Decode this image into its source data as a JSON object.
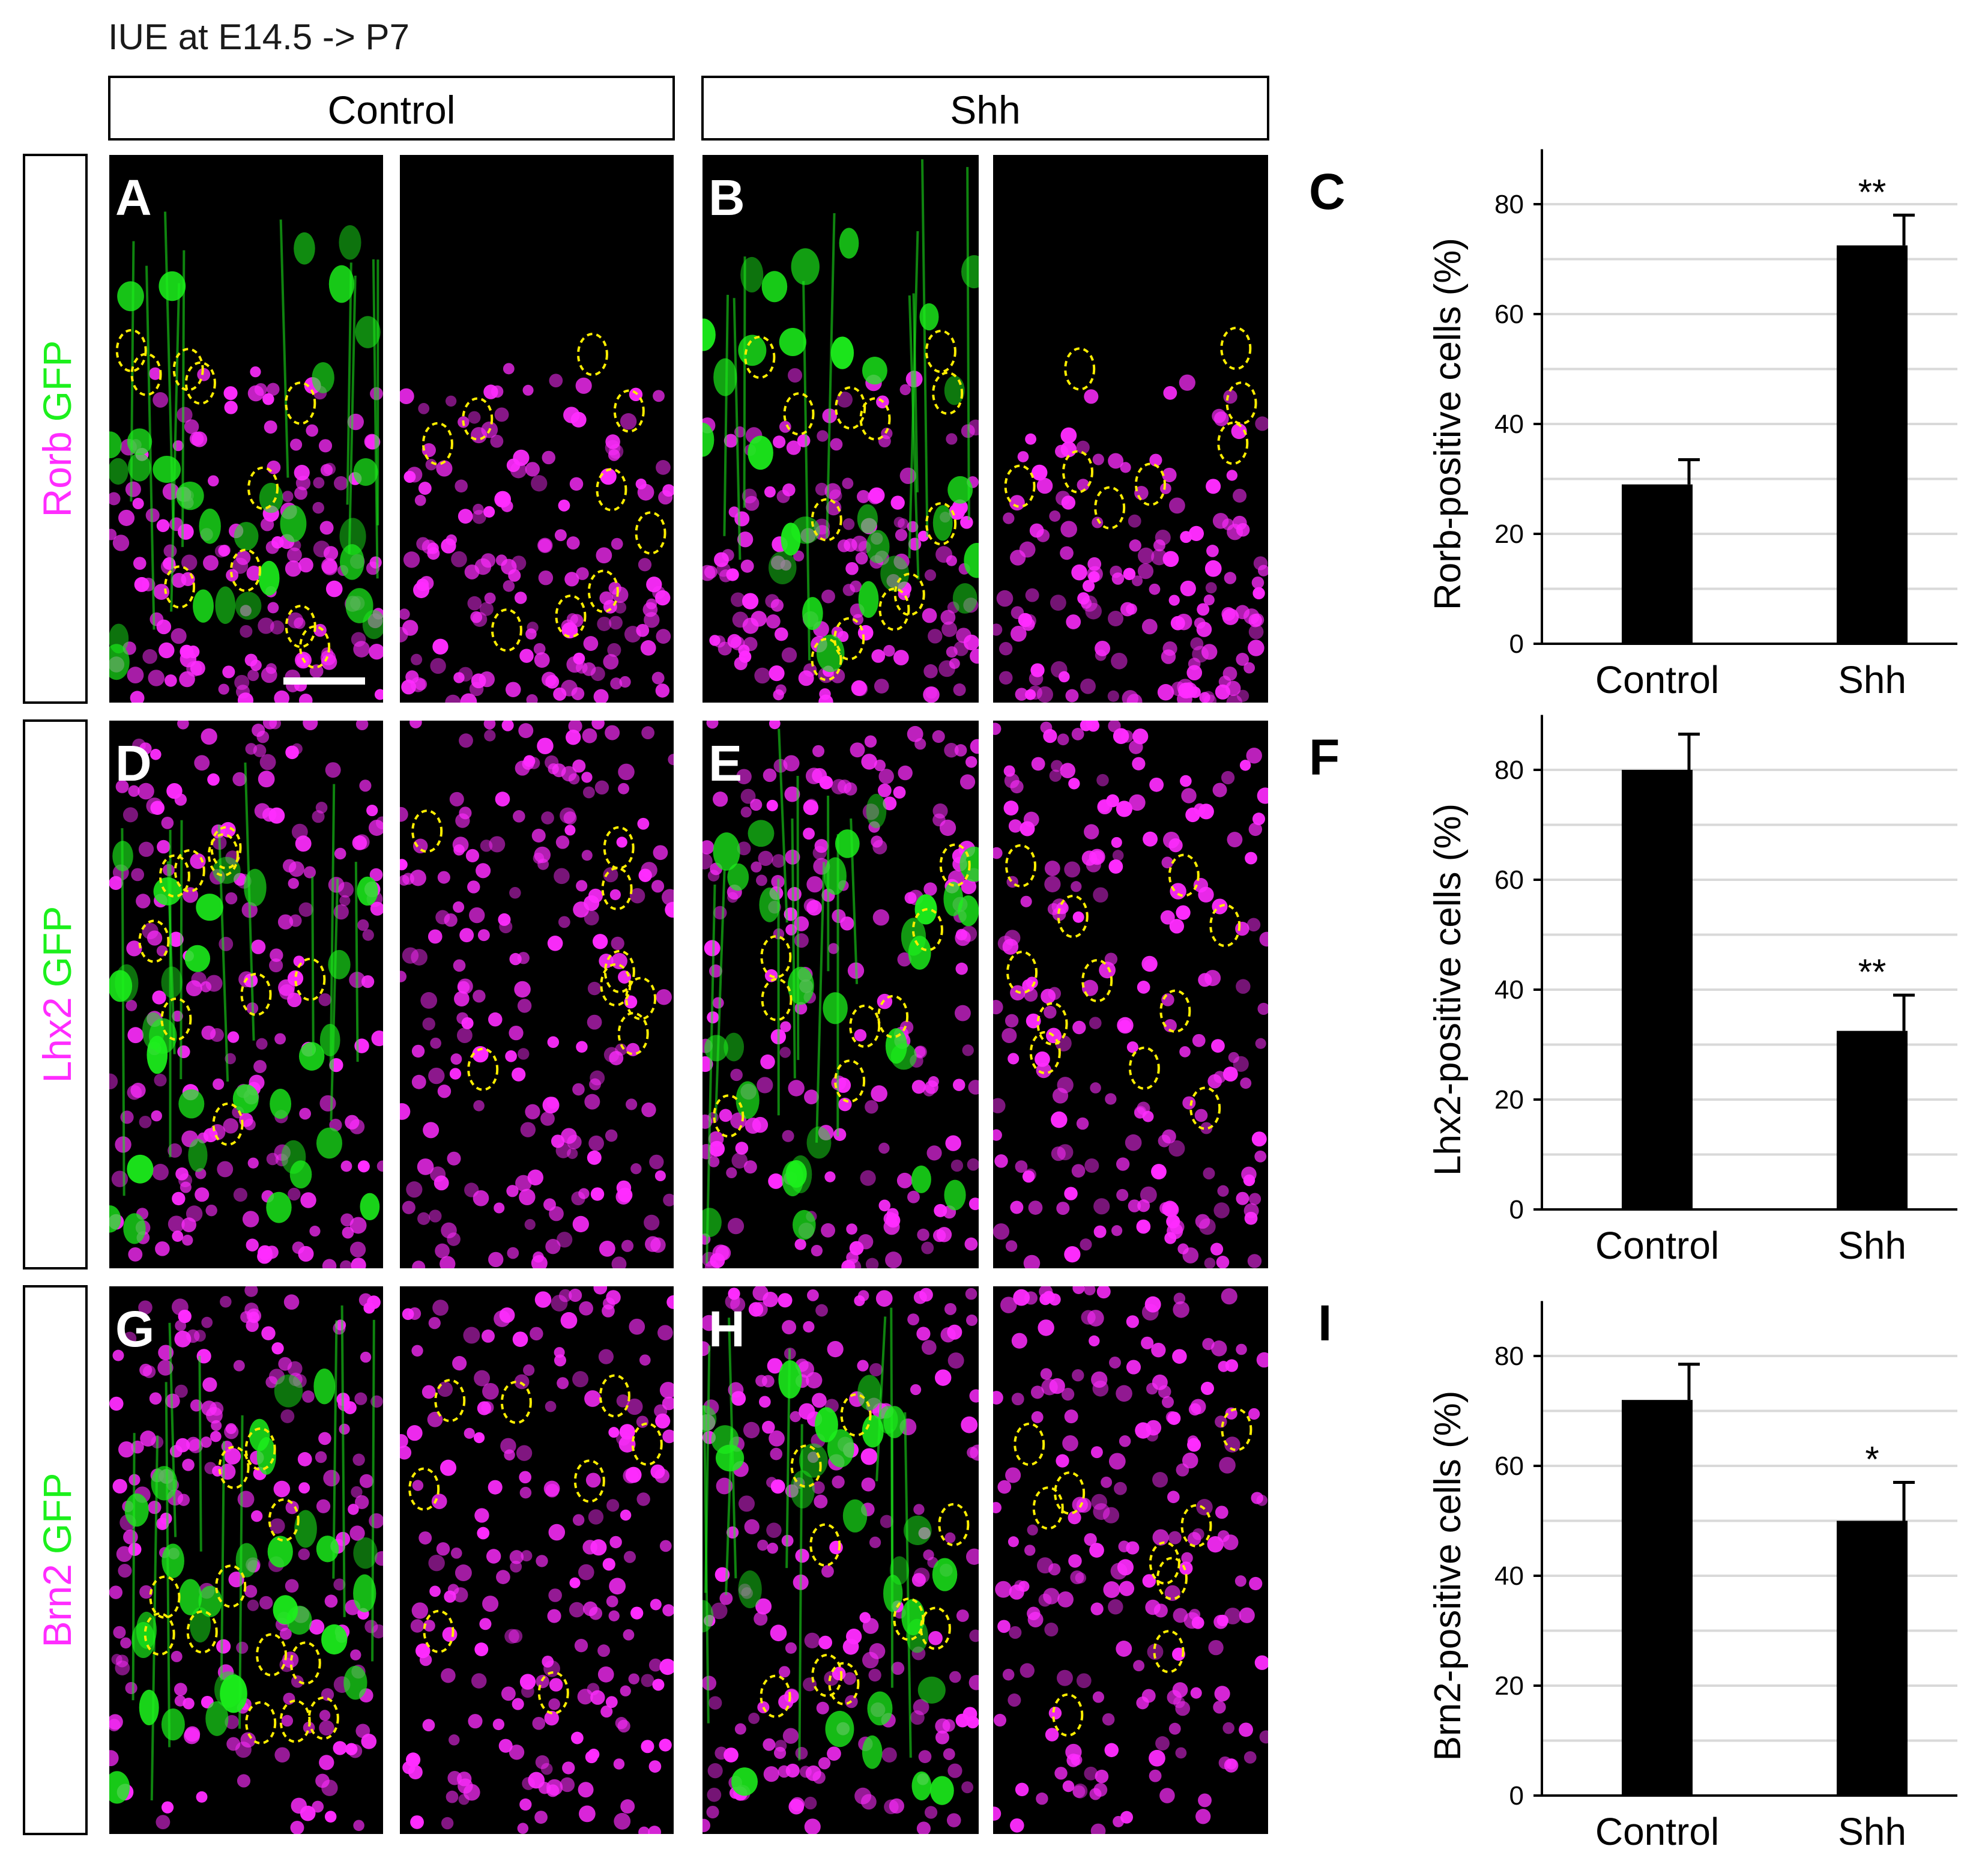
{
  "figure": {
    "title": "IUE at E14.5 -> P7",
    "column_headers": [
      "Control",
      "Shh"
    ],
    "rows": [
      {
        "marker": "Rorb",
        "reporter": "GFP",
        "panel_left": "A",
        "panel_right": "B",
        "chart_letter": "C"
      },
      {
        "marker": "Lhx2",
        "reporter": "GFP",
        "panel_left": "D",
        "panel_right": "E",
        "chart_letter": "F"
      },
      {
        "marker": "Brn2",
        "reporter": "GFP",
        "panel_left": "G",
        "panel_right": "H",
        "chart_letter": "I"
      }
    ],
    "colors": {
      "magenta": "#ff2cff",
      "green": "#1cf01c",
      "circle": "#ffee00",
      "micrograph_bg": "#000000",
      "bar": "#000000",
      "gridline": "#d9d9d9"
    }
  },
  "chart_data": [
    {
      "type": "bar",
      "panel": "C",
      "categories": [
        "Control",
        "Shh"
      ],
      "values": [
        29,
        72.5
      ],
      "errors": [
        4.5,
        5.5
      ],
      "significance": [
        "",
        "**"
      ],
      "ylabel": "Rorb-positive cells (%)",
      "ylim": [
        0,
        80
      ],
      "yticks": [
        0,
        20,
        40,
        60,
        80
      ],
      "grid": true
    },
    {
      "type": "bar",
      "panel": "F",
      "categories": [
        "Control",
        "Shh"
      ],
      "values": [
        80,
        32.5
      ],
      "errors": [
        6.5,
        6.5
      ],
      "significance": [
        "",
        "**"
      ],
      "ylabel": "Lhx2-positive cells (%)",
      "ylim": [
        0,
        80
      ],
      "yticks": [
        0,
        20,
        40,
        60,
        80
      ],
      "grid": true
    },
    {
      "type": "bar",
      "panel": "I",
      "categories": [
        "Control",
        "Shh"
      ],
      "values": [
        72,
        50
      ],
      "errors": [
        6.5,
        7
      ],
      "significance": [
        "",
        "*"
      ],
      "ylabel": "Brn2-positive cells (%)",
      "ylim": [
        0,
        80
      ],
      "yticks": [
        0,
        20,
        40,
        60,
        80
      ],
      "grid": true
    }
  ]
}
